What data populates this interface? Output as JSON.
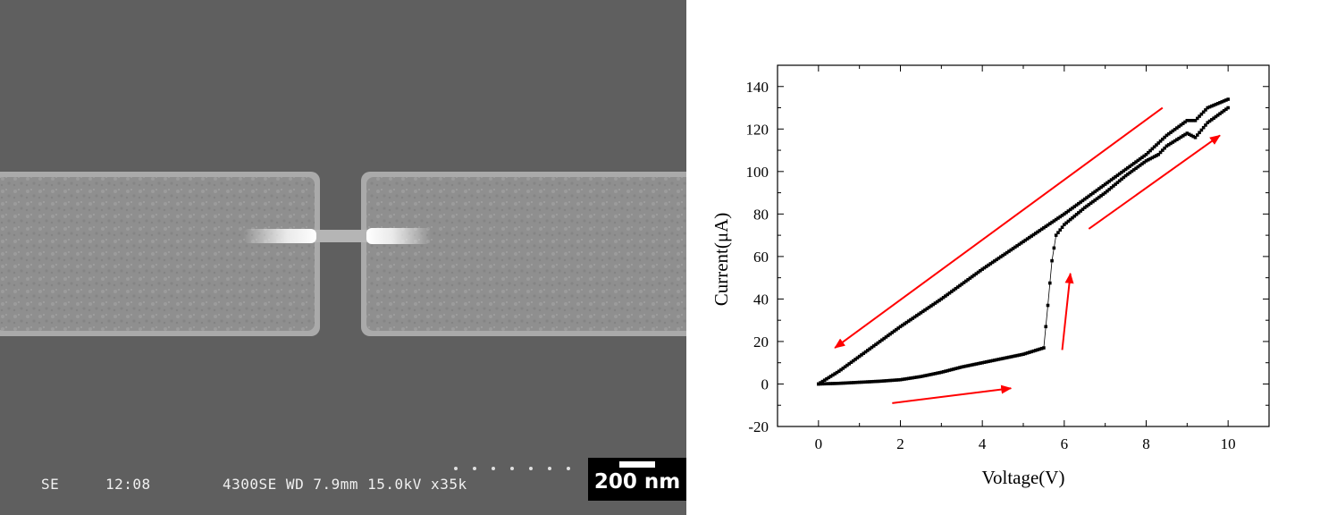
{
  "sem_image": {
    "mode": "SE",
    "time": "12:08",
    "params": "4300SE WD 7.9mm 15.0kV x35k",
    "scale_label": "200 nm"
  },
  "chart_data": {
    "type": "scatter",
    "xlabel": "Voltage(V)",
    "ylabel": "Current(μA)",
    "xlim": [
      -1,
      11
    ],
    "ylim": [
      -20,
      150
    ],
    "xticks": [
      0,
      2,
      4,
      6,
      8,
      10
    ],
    "yticks": [
      -20,
      0,
      20,
      40,
      60,
      80,
      100,
      120,
      140
    ],
    "grid": false,
    "marker_color": "#000000",
    "arrow_color": "#ff0000",
    "series": [
      {
        "x": [
          0,
          0.5,
          1,
          1.5,
          2,
          2.5,
          3,
          3.5,
          4,
          4.5,
          5,
          5.5,
          5.6,
          5.7,
          5.8,
          6,
          6.5,
          7,
          7.5,
          8,
          8.3,
          8.5,
          9,
          9.2,
          9.5,
          10
        ],
        "values": [
          0,
          0.3,
          0.8,
          1.3,
          2,
          3.5,
          5.5,
          8,
          10,
          12,
          14,
          17,
          37,
          58,
          70,
          75,
          83,
          90,
          98,
          105,
          108,
          112,
          118,
          116,
          123,
          130
        ]
      },
      {
        "x": [
          10,
          9.5,
          9.2,
          9,
          8.5,
          8,
          7,
          6,
          5,
          4,
          3,
          2,
          1,
          0.5,
          0
        ],
        "values": [
          134,
          130,
          124,
          124,
          117,
          108,
          94,
          80,
          67,
          54,
          40,
          27,
          13,
          6,
          0
        ]
      }
    ],
    "annotations": [
      {
        "kind": "arrow",
        "from": [
          1.8,
          -9
        ],
        "to": [
          4.7,
          -2
        ]
      },
      {
        "kind": "arrow",
        "from": [
          5.95,
          16
        ],
        "to": [
          6.15,
          52
        ]
      },
      {
        "kind": "arrow",
        "from": [
          6.6,
          73
        ],
        "to": [
          9.8,
          117
        ]
      },
      {
        "kind": "arrow",
        "from": [
          8.4,
          130
        ],
        "to": [
          0.4,
          17
        ]
      }
    ]
  }
}
